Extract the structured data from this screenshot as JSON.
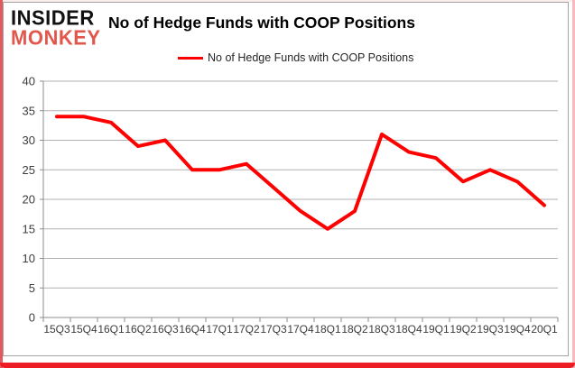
{
  "brand": {
    "line1": "INSIDER",
    "line2": "MONKEY"
  },
  "header": {
    "title": "No of Hedge Funds with COOP Positions"
  },
  "legend": {
    "label": "No of Hedge Funds with COOP Positions"
  },
  "colors": {
    "line": "#fe0000",
    "brand_red": "#e2574c",
    "grid": "#b2b2b2",
    "axis": "#8c8c8c",
    "tick_label": "#3c3c3c",
    "frame_red": "#ee1c25"
  },
  "chart_data": {
    "type": "line",
    "title": "No of Hedge Funds with COOP Positions",
    "categories": [
      "15Q3",
      "15Q4",
      "16Q1",
      "16Q2",
      "16Q3",
      "16Q4",
      "17Q1",
      "17Q2",
      "17Q3",
      "17Q4",
      "18Q1",
      "18Q2",
      "18Q3",
      "18Q4",
      "19Q1",
      "19Q2",
      "19Q3",
      "19Q4",
      "20Q1"
    ],
    "series": [
      {
        "name": "No of Hedge Funds with COOP Positions",
        "values": [
          34,
          34,
          33,
          29,
          30,
          25,
          25,
          26,
          22,
          18,
          15,
          18,
          31,
          28,
          27,
          23,
          25,
          23,
          19
        ]
      }
    ],
    "xlabel": "",
    "ylabel": "",
    "ylim": [
      0,
      40
    ],
    "ytick_interval": 5,
    "grid": true,
    "legend_position": "top-center"
  }
}
